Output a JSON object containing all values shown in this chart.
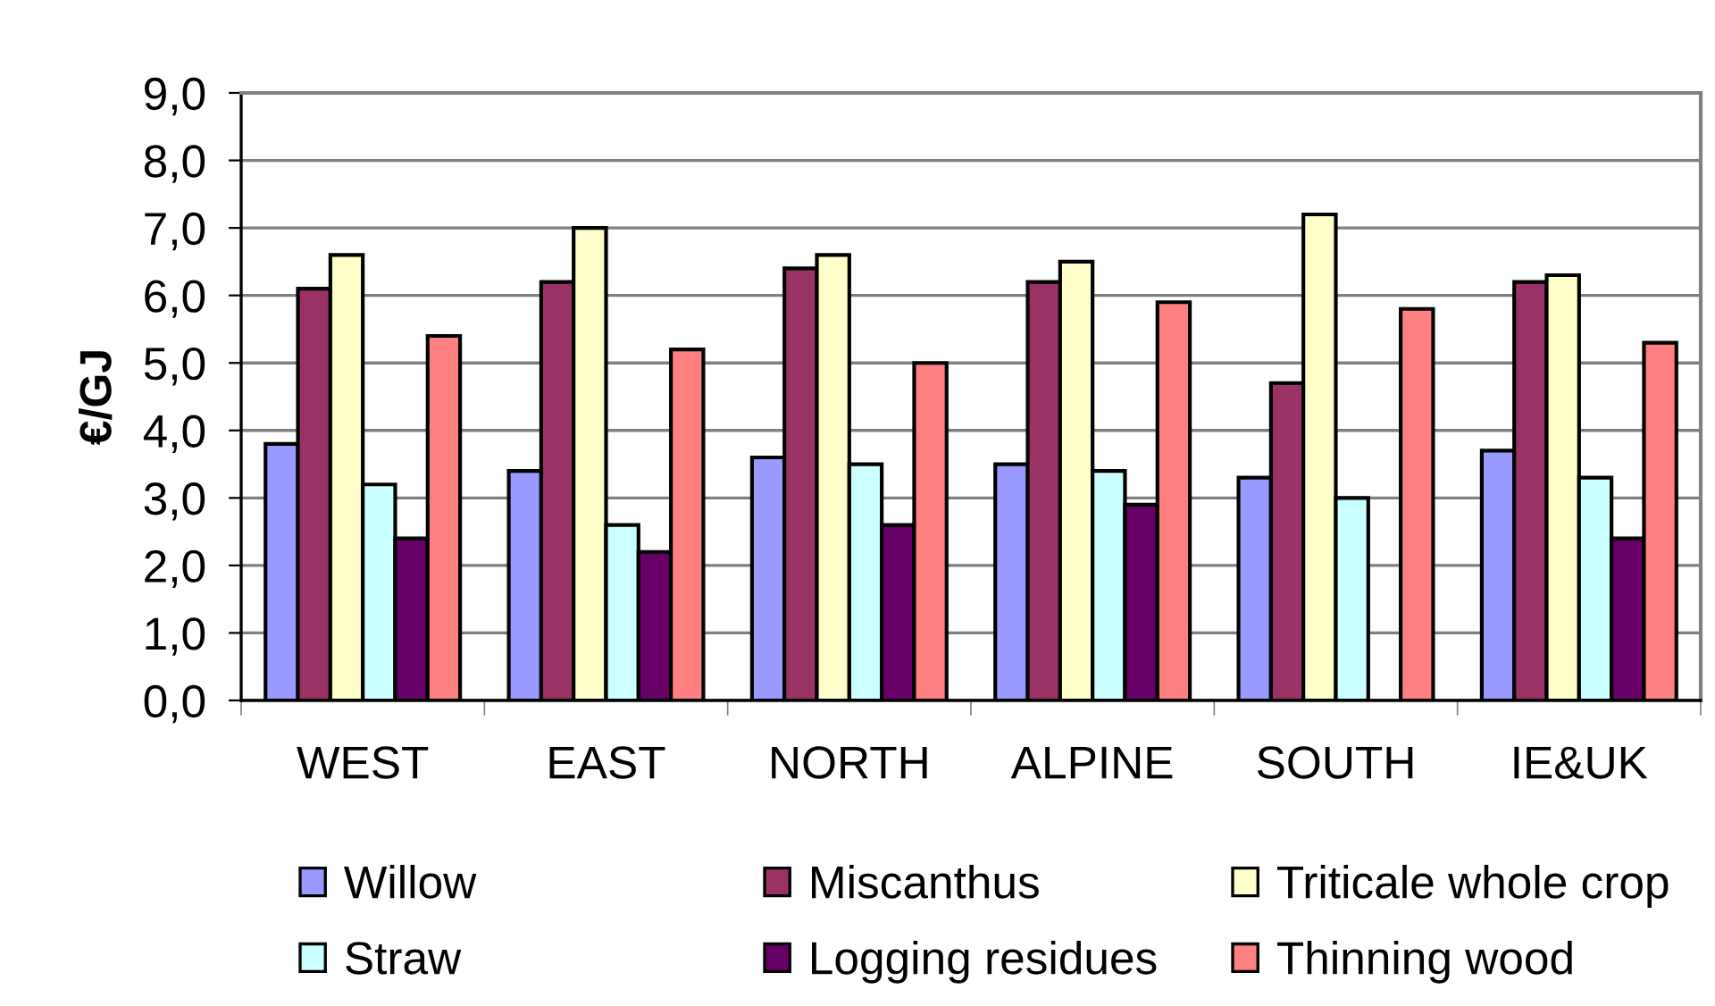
{
  "chart_data": {
    "type": "bar",
    "ylabel": "€/GJ",
    "categories": [
      "WEST",
      "EAST",
      "NORTH",
      "ALPINE",
      "SOUTH",
      "IE&UK"
    ],
    "series": [
      {
        "name": "Willow",
        "color": "#9999ff",
        "values": [
          3.8,
          3.4,
          3.6,
          3.5,
          3.3,
          3.7
        ]
      },
      {
        "name": "Miscanthus",
        "color": "#993366",
        "values": [
          6.1,
          6.2,
          6.4,
          6.2,
          4.7,
          6.2
        ]
      },
      {
        "name": "Triticale whole crop",
        "color": "#ffffcc",
        "values": [
          6.6,
          7.0,
          6.6,
          6.5,
          7.2,
          6.3
        ]
      },
      {
        "name": "Straw",
        "color": "#ccffff",
        "values": [
          3.2,
          2.6,
          3.5,
          3.4,
          3.0,
          3.3
        ]
      },
      {
        "name": "Logging residues",
        "color": "#660066",
        "values": [
          2.4,
          2.2,
          2.6,
          2.9,
          null,
          2.4
        ]
      },
      {
        "name": "Thinning wood",
        "color": "#ff8080",
        "values": [
          5.4,
          5.2,
          5.0,
          5.9,
          5.8,
          5.3
        ]
      }
    ],
    "ylim": [
      0,
      9
    ],
    "yticks": [
      {
        "value": 0,
        "label": "0,0"
      },
      {
        "value": 1,
        "label": "1,0"
      },
      {
        "value": 2,
        "label": "2,0"
      },
      {
        "value": 3,
        "label": "3,0"
      },
      {
        "value": 4,
        "label": "4,0"
      },
      {
        "value": 5,
        "label": "5,0"
      },
      {
        "value": 6,
        "label": "6,0"
      },
      {
        "value": 7,
        "label": "7,0"
      },
      {
        "value": 8,
        "label": "8,0"
      },
      {
        "value": 9,
        "label": "9,0"
      }
    ],
    "grid": "y",
    "legend": "bottom"
  }
}
